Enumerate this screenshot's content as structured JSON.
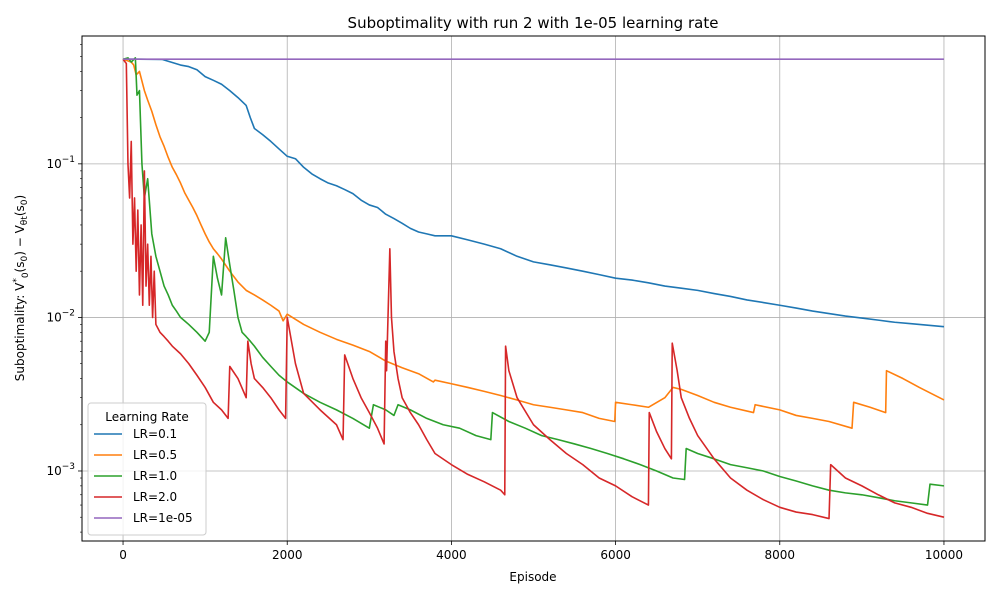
{
  "chart_data": {
    "type": "line",
    "title": "Suboptimality with run 2 with 1e-05 learning rate",
    "xlabel": "Episode",
    "ylabel": "Suboptimality: V*₀(s₀) − V_θt(s₀)",
    "yscale": "log",
    "xlim": [
      -500,
      10500
    ],
    "ylim": [
      0.00035,
      0.68
    ],
    "x_ticks": [
      0,
      2000,
      4000,
      6000,
      8000,
      10000
    ],
    "y_ticks": [
      {
        "value": 0.001,
        "base": "10",
        "exp": "−3"
      },
      {
        "value": 0.01,
        "base": "10",
        "exp": "−2"
      },
      {
        "value": 0.1,
        "base": "10",
        "exp": "−1"
      }
    ],
    "grid": true,
    "legend": {
      "title": "Learning Rate",
      "placement": "lower-left"
    },
    "series": [
      {
        "name": "LR=0.1",
        "color": "#1f77b4",
        "x": [
          0,
          200,
          480,
          700,
          800,
          900,
          1000,
          1100,
          1200,
          1300,
          1400,
          1500,
          1550,
          1600,
          1700,
          1800,
          1900,
          2000,
          2100,
          2200,
          2300,
          2400,
          2500,
          2600,
          2700,
          2800,
          2900,
          3000,
          3100,
          3200,
          3300,
          3400,
          3500,
          3600,
          3700,
          3800,
          4000,
          4200,
          4400,
          4600,
          4800,
          5000,
          5200,
          5400,
          5600,
          5800,
          6000,
          6200,
          6400,
          6600,
          6800,
          7000,
          7200,
          7400,
          7600,
          7800,
          8000,
          8200,
          8400,
          8600,
          8800,
          9000,
          9200,
          9400,
          9600,
          9800,
          10000
        ],
        "values": [
          0.48,
          0.48,
          0.478,
          0.44,
          0.43,
          0.41,
          0.37,
          0.35,
          0.33,
          0.3,
          0.27,
          0.24,
          0.2,
          0.17,
          0.155,
          0.14,
          0.125,
          0.112,
          0.108,
          0.095,
          0.086,
          0.08,
          0.075,
          0.072,
          0.068,
          0.064,
          0.058,
          0.054,
          0.052,
          0.047,
          0.044,
          0.041,
          0.038,
          0.036,
          0.035,
          0.034,
          0.034,
          0.032,
          0.03,
          0.028,
          0.025,
          0.023,
          0.022,
          0.021,
          0.02,
          0.019,
          0.018,
          0.0175,
          0.0168,
          0.016,
          0.0155,
          0.015,
          0.0143,
          0.0137,
          0.013,
          0.0125,
          0.012,
          0.0115,
          0.011,
          0.0106,
          0.0102,
          0.0099,
          0.0096,
          0.0093,
          0.0091,
          0.0089,
          0.0087
        ]
      },
      {
        "name": "LR=0.5",
        "color": "#ff7f0e",
        "x": [
          0,
          50,
          100,
          130,
          160,
          200,
          260,
          300,
          350,
          400,
          450,
          500,
          550,
          600,
          650,
          700,
          750,
          800,
          850,
          900,
          950,
          1000,
          1050,
          1100,
          1150,
          1200,
          1300,
          1400,
          1500,
          1600,
          1700,
          1800,
          1900,
          1950,
          2000,
          2200,
          2400,
          2600,
          2800,
          3000,
          3200,
          3400,
          3600,
          3780,
          3800,
          4000,
          4200,
          4400,
          4600,
          4800,
          5000,
          5200,
          5400,
          5600,
          5800,
          5990,
          6000,
          6200,
          6400,
          6600,
          6700,
          6800,
          7000,
          7200,
          7400,
          7680,
          7700,
          8000,
          8200,
          8400,
          8600,
          8880,
          8900,
          9100,
          9290,
          9300,
          9500,
          9700,
          10000
        ],
        "values": [
          0.48,
          0.47,
          0.46,
          0.44,
          0.38,
          0.4,
          0.3,
          0.26,
          0.22,
          0.18,
          0.15,
          0.13,
          0.11,
          0.095,
          0.085,
          0.075,
          0.065,
          0.058,
          0.052,
          0.046,
          0.04,
          0.035,
          0.031,
          0.028,
          0.026,
          0.024,
          0.02,
          0.017,
          0.015,
          0.014,
          0.013,
          0.012,
          0.011,
          0.0095,
          0.0105,
          0.009,
          0.008,
          0.0072,
          0.0066,
          0.006,
          0.0052,
          0.0047,
          0.0043,
          0.0038,
          0.0039,
          0.0037,
          0.0035,
          0.0033,
          0.0031,
          0.0029,
          0.0027,
          0.0026,
          0.0025,
          0.0024,
          0.0022,
          0.0021,
          0.0028,
          0.0027,
          0.0026,
          0.003,
          0.0035,
          0.0034,
          0.0031,
          0.0028,
          0.0026,
          0.0024,
          0.0027,
          0.0025,
          0.0023,
          0.0022,
          0.0021,
          0.0019,
          0.0028,
          0.0026,
          0.0024,
          0.0045,
          0.004,
          0.0035,
          0.0029
        ]
      },
      {
        "name": "LR=1.0",
        "color": "#2ca02c",
        "x": [
          0,
          60,
          100,
          150,
          170,
          200,
          230,
          260,
          300,
          350,
          400,
          450,
          500,
          550,
          600,
          650,
          700,
          750,
          800,
          900,
          1000,
          1050,
          1100,
          1150,
          1200,
          1250,
          1300,
          1350,
          1400,
          1450,
          1500,
          1550,
          1600,
          1700,
          1800,
          1900,
          2000,
          2200,
          2400,
          2600,
          2800,
          3000,
          3050,
          3200,
          3300,
          3350,
          3500,
          3700,
          3900,
          4100,
          4300,
          4480,
          4500,
          4700,
          4900,
          5100,
          5300,
          5500,
          5700,
          5900,
          6100,
          6300,
          6500,
          6700,
          6840,
          6860,
          7000,
          7200,
          7400,
          7600,
          7800,
          8000,
          8200,
          8400,
          8600,
          8800,
          9000,
          9200,
          9400,
          9600,
          9800,
          9830,
          10000
        ],
        "values": [
          0.48,
          0.49,
          0.46,
          0.49,
          0.28,
          0.3,
          0.1,
          0.06,
          0.08,
          0.035,
          0.025,
          0.02,
          0.016,
          0.014,
          0.012,
          0.011,
          0.01,
          0.0095,
          0.009,
          0.008,
          0.007,
          0.008,
          0.025,
          0.018,
          0.014,
          0.033,
          0.022,
          0.015,
          0.01,
          0.008,
          0.0075,
          0.007,
          0.0065,
          0.0055,
          0.0048,
          0.0042,
          0.0038,
          0.0032,
          0.0028,
          0.0025,
          0.0022,
          0.0019,
          0.0027,
          0.0025,
          0.0023,
          0.0027,
          0.0025,
          0.0022,
          0.002,
          0.0019,
          0.0017,
          0.0016,
          0.0024,
          0.0021,
          0.0019,
          0.0017,
          0.0016,
          0.0015,
          0.0014,
          0.0013,
          0.0012,
          0.0011,
          0.001,
          0.0009,
          0.00088,
          0.0014,
          0.0013,
          0.0012,
          0.0011,
          0.00105,
          0.001,
          0.00092,
          0.00086,
          0.0008,
          0.00075,
          0.00072,
          0.0007,
          0.00067,
          0.00064,
          0.00062,
          0.0006,
          0.00082,
          0.0008
        ]
      },
      {
        "name": "LR=2.0",
        "color": "#d62728",
        "x": [
          0,
          40,
          60,
          80,
          100,
          120,
          140,
          160,
          180,
          200,
          220,
          240,
          260,
          280,
          300,
          320,
          340,
          360,
          380,
          400,
          450,
          500,
          550,
          600,
          700,
          800,
          900,
          1000,
          1100,
          1200,
          1280,
          1300,
          1400,
          1500,
          1520,
          1560,
          1600,
          1700,
          1800,
          1900,
          1980,
          2000,
          2100,
          2200,
          2400,
          2600,
          2680,
          2700,
          2800,
          2900,
          3000,
          3100,
          3180,
          3200,
          3210,
          3250,
          3270,
          3300,
          3350,
          3400,
          3500,
          3600,
          3700,
          3800,
          4000,
          4200,
          4400,
          4600,
          4650,
          4660,
          4700,
          4800,
          5000,
          5200,
          5400,
          5600,
          5800,
          6000,
          6200,
          6400,
          6410,
          6500,
          6600,
          6680,
          6690,
          6750,
          6800,
          6900,
          7000,
          7200,
          7400,
          7600,
          7800,
          8000,
          8200,
          8400,
          8600,
          8620,
          8800,
          9000,
          9200,
          9400,
          9600,
          9800,
          10000
        ],
        "values": [
          0.48,
          0.45,
          0.1,
          0.06,
          0.14,
          0.03,
          0.06,
          0.02,
          0.05,
          0.014,
          0.04,
          0.012,
          0.09,
          0.016,
          0.03,
          0.012,
          0.025,
          0.01,
          0.02,
          0.009,
          0.008,
          0.0075,
          0.007,
          0.0065,
          0.0058,
          0.005,
          0.0042,
          0.0035,
          0.0028,
          0.0025,
          0.0022,
          0.0048,
          0.004,
          0.003,
          0.007,
          0.005,
          0.004,
          0.0035,
          0.003,
          0.0025,
          0.0022,
          0.01,
          0.005,
          0.0032,
          0.0025,
          0.002,
          0.0016,
          0.0057,
          0.004,
          0.003,
          0.0024,
          0.0019,
          0.0015,
          0.007,
          0.0045,
          0.028,
          0.01,
          0.006,
          0.004,
          0.003,
          0.0024,
          0.002,
          0.0016,
          0.0013,
          0.0011,
          0.00095,
          0.00085,
          0.00075,
          0.0007,
          0.0065,
          0.0045,
          0.003,
          0.002,
          0.0016,
          0.0013,
          0.0011,
          0.0009,
          0.0008,
          0.00068,
          0.0006,
          0.0024,
          0.0018,
          0.0014,
          0.0012,
          0.0068,
          0.0045,
          0.003,
          0.0022,
          0.0017,
          0.0012,
          0.0009,
          0.00075,
          0.00065,
          0.00058,
          0.00054,
          0.00052,
          0.00049,
          0.0011,
          0.0009,
          0.0008,
          0.0007,
          0.00062,
          0.00058,
          0.00053,
          0.0005
        ]
      },
      {
        "name": "LR=1e-05",
        "color": "#9467bd",
        "x": [
          0,
          10000
        ],
        "values": [
          0.48,
          0.48
        ]
      }
    ]
  }
}
